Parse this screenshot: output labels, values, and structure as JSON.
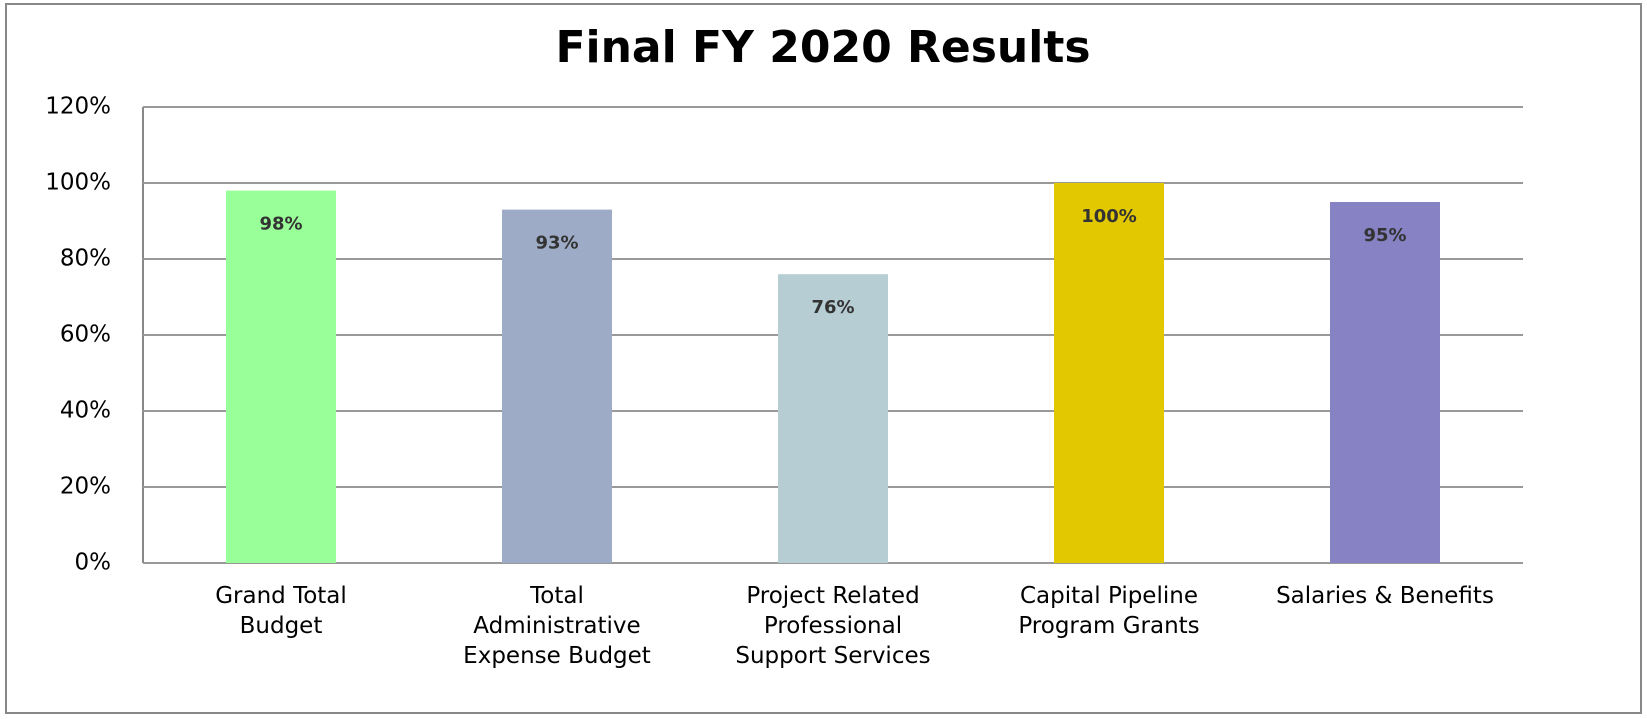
{
  "chart_data": {
    "type": "bar",
    "title": "Final FY 2020 Results",
    "categories": [
      [
        "Grand Total",
        "Budget"
      ],
      [
        "Total",
        "Administrative",
        "Expense Budget"
      ],
      [
        "Project Related",
        "Professional",
        "Support Services"
      ],
      [
        "Capital Pipeline",
        "Program Grants"
      ],
      [
        "Salaries & Benefits"
      ]
    ],
    "values": [
      98,
      93,
      76,
      100,
      95
    ],
    "value_labels": [
      "98%",
      "93%",
      "76%",
      "100%",
      "95%"
    ],
    "colors": [
      "#99ff99",
      "#9eabc6",
      "#b5cdd3",
      "#e2c800",
      "#8682c4"
    ],
    "ylim": [
      0,
      120
    ],
    "yticks": [
      {
        "value": 0,
        "label": "0%"
      },
      {
        "value": 20,
        "label": "20%"
      },
      {
        "value": 40,
        "label": "40%"
      },
      {
        "value": 60,
        "label": "60%"
      },
      {
        "value": 80,
        "label": "80%"
      },
      {
        "value": 100,
        "label": "100%"
      },
      {
        "value": 120,
        "label": "120%"
      }
    ],
    "grid": true
  }
}
